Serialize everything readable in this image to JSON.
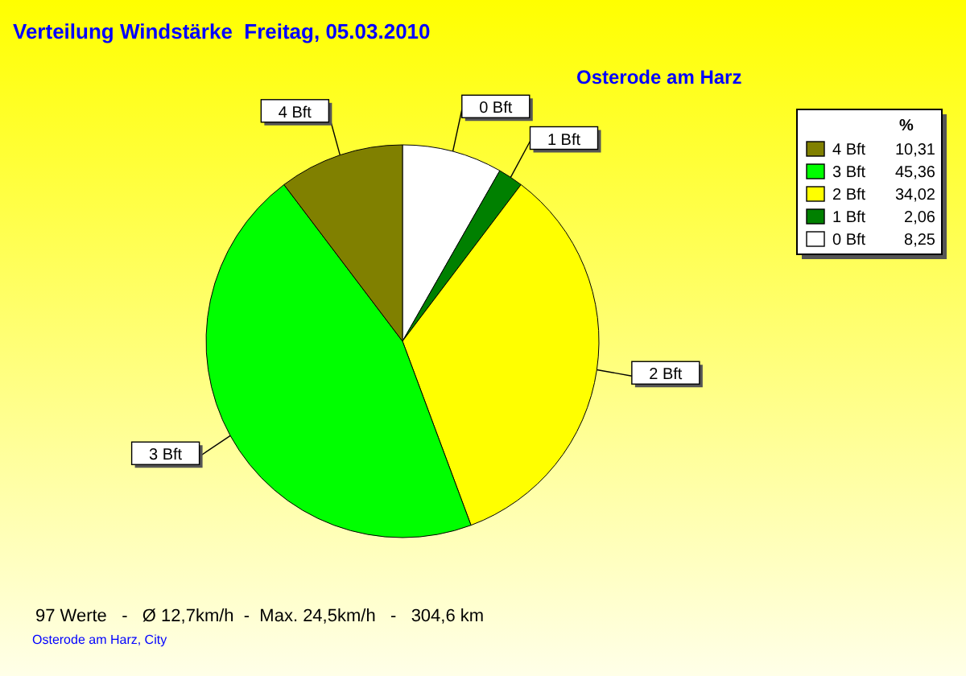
{
  "chart_data": {
    "type": "pie",
    "title": "Verteilung Windstärke  Freitag, 05.03.2010",
    "subtitle": "Osterode am Harz",
    "legend_title": "%",
    "legend": "top right",
    "categories": [
      "0 Bft",
      "1 Bft",
      "2 Bft",
      "3 Bft",
      "4 Bft"
    ],
    "values": [
      8.25,
      2.06,
      34.02,
      45.36,
      10.31
    ],
    "value_labels": [
      "8,25",
      "2,06",
      "34,02",
      "45,36",
      "10,31"
    ],
    "colors": [
      "#ffffff",
      "#008000",
      "#ffff00",
      "#00ff00",
      "#808000"
    ],
    "annotations": [
      "97 Werte   -   Ø 12,7km/h  -  Max. 24,5km/h   -   304,6 km",
      "Osterode am Harz, City"
    ]
  }
}
